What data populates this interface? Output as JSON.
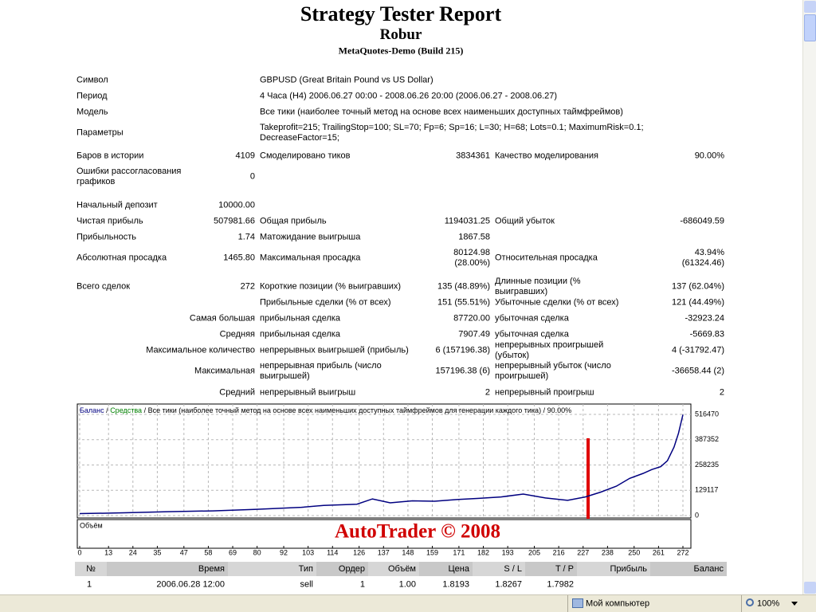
{
  "header": {
    "title": "Strategy Tester Report",
    "expert": "Robur",
    "server": "MetaQuotes-Demo (Build 215)"
  },
  "settings": [
    {
      "label": "Символ",
      "value": "GBPUSD (Great Britain Pound vs US Dollar)"
    },
    {
      "label": "Период",
      "value": "4 Часа (H4) 2006.06.27 00:00 - 2008.06.26 20:00 (2006.06.27 - 2008.06.27)"
    },
    {
      "label": "Модель",
      "value": "Все тики (наиболее точный метод на основе всех наименьших доступных таймфреймов)"
    },
    {
      "label": "Параметры",
      "value": "Takeprofit=215; TrailingStop=100; SL=70; Fp=6; Sp=16; L=30; H=68; Lots=0.1; MaximumRisk=0.1; DecreaseFactor=15;"
    }
  ],
  "stats": [
    {
      "l1": "Баров в истории",
      "v1": "4109",
      "l2": "Смоделировано тиков",
      "v2": "3834361",
      "l3": "Качество моделирования",
      "v3": "90.00%"
    },
    {
      "l1": "Ошибки рассогласования графиков",
      "v1": "0"
    },
    {
      "l1": "Начальный депозит",
      "v1": "10000.00"
    },
    {
      "l1": "Чистая прибыль",
      "v1": "507981.66",
      "l2": "Общая прибыль",
      "v2": "1194031.25",
      "l3": "Общий убыток",
      "v3": "-686049.59"
    },
    {
      "l1": "Прибыльность",
      "v1": "1.74",
      "l2": "Матожидание выигрыша",
      "v2": "1867.58"
    },
    {
      "l1": "Абсолютная просадка",
      "v1": "1465.80",
      "l2": "Максимальная просадка",
      "v2": "80124.98 (28.00%)",
      "l3": "Относительная просадка",
      "v3": "43.94% (61324.46)"
    },
    {
      "l1": "Всего сделок",
      "v1": "272",
      "l2": "Короткие позиции (% выигравших)",
      "v2": "135 (48.89%)",
      "l3": "Длинные позиции (% выигравших)",
      "v3": "137 (62.04%)"
    },
    {
      "l2": "Прибыльные сделки (% от всех)",
      "v2": "151 (55.51%)",
      "l3": "Убыточные сделки (% от всех)",
      "v3": "121 (44.49%)"
    },
    {
      "l1": "Самая большая",
      "l2": "прибыльная сделка",
      "v2": "87720.00",
      "l3": "убыточная сделка",
      "v3": "-32923.24"
    },
    {
      "l1": "Средняя",
      "l2": "прибыльная сделка",
      "v2": "7907.49",
      "l3": "убыточная сделка",
      "v3": "-5669.83"
    },
    {
      "l1": "Максимальное количество",
      "l2": "непрерывных выигрышей (прибыль)",
      "v2": "6 (157196.38)",
      "l3": "непрерывных проигрышей (убыток)",
      "v3": "4 (-31792.47)"
    },
    {
      "l1": "Максимальная",
      "l2": "непрерывная прибыль (число выигрышей)",
      "v2": "157196.38 (6)",
      "l3": "непрерывный убыток (число проигрышей)",
      "v3": "-36658.44 (2)"
    },
    {
      "l1": "Средний",
      "l2": "непрерывный выигрыш",
      "v2": "2",
      "l3": "непрерывный проигрыш",
      "v3": "2"
    }
  ],
  "chart": {
    "type": "line",
    "separator": "/",
    "equity_label": "Средства",
    "model": "Все тики (наиболее точный метод на основе всех наименьших доступных таймфреймов для генерации каждого тика)",
    "quality": "90.00%",
    "volume_label": "Объём",
    "watermark": "AutoTrader © 2008",
    "xlim": [
      0,
      272
    ],
    "ylim": [
      0,
      516470
    ],
    "xticks": [
      0,
      13,
      24,
      35,
      47,
      58,
      69,
      80,
      92,
      103,
      114,
      126,
      137,
      148,
      159,
      171,
      182,
      193,
      205,
      216,
      227,
      238,
      250,
      261,
      272
    ],
    "yticks": [
      0,
      129117,
      258235,
      387352,
      516470
    ],
    "grid": true,
    "series": [
      {
        "name": "Баланс",
        "color": "#000080",
        "x": [
          0,
          20,
          40,
          60,
          80,
          100,
          110,
          125,
          132,
          140,
          150,
          160,
          170,
          180,
          190,
          200,
          210,
          220,
          228,
          235,
          242,
          248,
          254,
          258,
          262,
          265,
          268,
          270,
          272
        ],
        "values": [
          10000,
          14000,
          20000,
          24000,
          32000,
          42000,
          52000,
          58000,
          85000,
          65000,
          75000,
          73000,
          82000,
          88000,
          95000,
          110000,
          90000,
          78000,
          95000,
          120000,
          150000,
          190000,
          215000,
          235000,
          250000,
          280000,
          350000,
          420000,
          515000
        ]
      }
    ]
  },
  "trades": {
    "columns": [
      "№",
      "Время",
      "Тип",
      "Ордер",
      "Объём",
      "Цена",
      "S / L",
      "T / P",
      "Прибыль",
      "Баланс"
    ],
    "rows": [
      [
        "1",
        "2006.06.28 12:00",
        "sell",
        "1",
        "1.00",
        "1.8193",
        "1.8267",
        "1.7982"
      ]
    ]
  },
  "statusbar": {
    "zone": "Мой компьютер",
    "zoom": "100%"
  }
}
